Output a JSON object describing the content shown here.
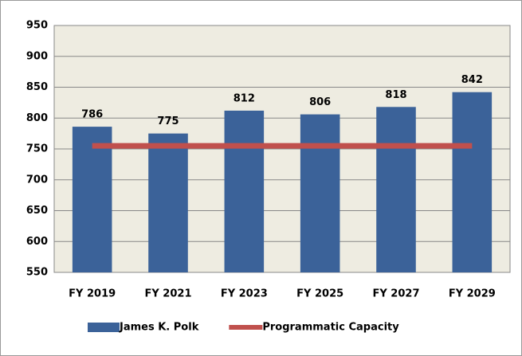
{
  "chart_data": {
    "type": "bar",
    "categories": [
      "FY 2019",
      "FY 2021",
      "FY 2023",
      "FY 2025",
      "FY 2027",
      "FY 2029"
    ],
    "series": [
      {
        "name": "James K. Polk",
        "type": "bar",
        "color": "#3b6299",
        "values": [
          786,
          775,
          812,
          806,
          818,
          842
        ]
      },
      {
        "name": "Programmatic Capacity",
        "type": "line",
        "color": "#c0504d",
        "values": [
          755,
          755,
          755,
          755,
          755,
          755
        ]
      }
    ],
    "ylim": [
      550,
      950
    ],
    "yticks": [
      550,
      600,
      650,
      700,
      750,
      800,
      850,
      900,
      950
    ],
    "grid": true,
    "legend": "bottom",
    "plot_background": "#eeece1"
  }
}
